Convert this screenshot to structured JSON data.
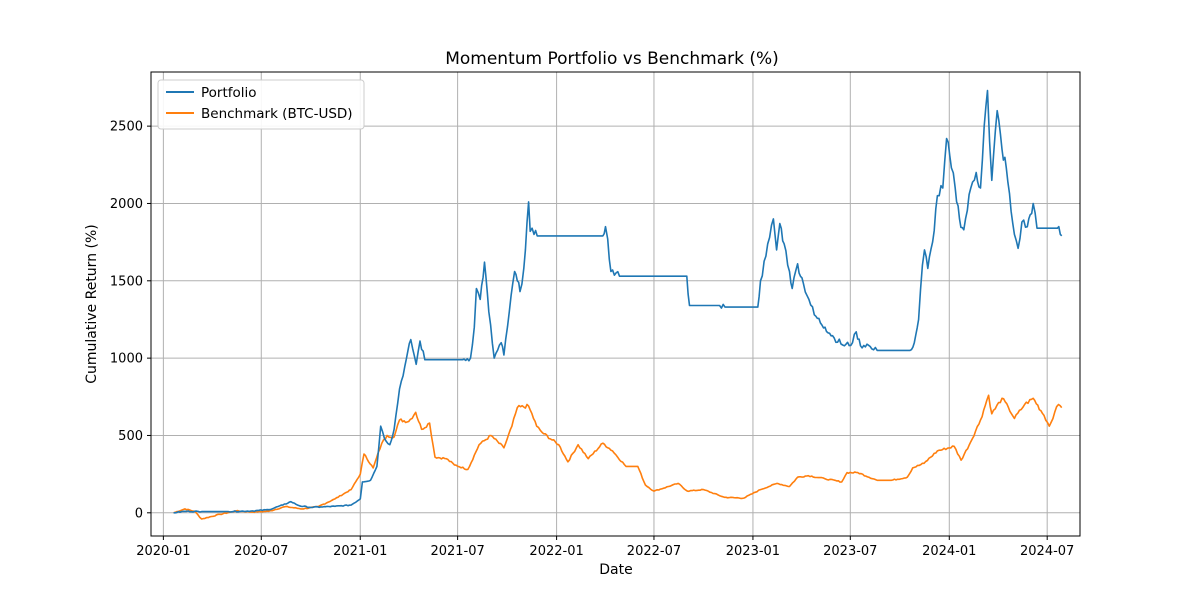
{
  "chart_data": {
    "type": "line",
    "title": "Momentum Portfolio vs Benchmark (%)",
    "xlabel": "Date",
    "ylabel": "Cumulative Return (%)",
    "xlim": [
      "2019-12-09",
      "2024-08-31"
    ],
    "ylim": [
      -150,
      2850
    ],
    "x_ticks": [
      "2020-01",
      "2020-07",
      "2021-01",
      "2021-07",
      "2022-01",
      "2022-07",
      "2023-01",
      "2023-07",
      "2024-01",
      "2024-07"
    ],
    "y_ticks": [
      0,
      500,
      1000,
      1500,
      2000,
      2500
    ],
    "grid": true,
    "legend_position": "top-left",
    "series": [
      {
        "name": "Portfolio",
        "color": "#1f77b4",
        "points": [
          [
            "2020-01-20",
            0
          ],
          [
            "2020-02-10",
            10
          ],
          [
            "2020-03-12",
            8
          ],
          [
            "2020-05-01",
            8
          ],
          [
            "2020-06-15",
            12
          ],
          [
            "2020-07-15",
            20
          ],
          [
            "2020-08-10",
            50
          ],
          [
            "2020-08-25",
            72
          ],
          [
            "2020-09-10",
            45
          ],
          [
            "2020-10-01",
            35
          ],
          [
            "2020-10-20",
            38
          ],
          [
            "2020-11-15",
            42
          ],
          [
            "2020-12-15",
            50
          ],
          [
            "2021-01-01",
            90
          ],
          [
            "2021-01-05",
            200
          ],
          [
            "2021-01-20",
            210
          ],
          [
            "2021-02-01",
            300
          ],
          [
            "2021-02-08",
            560
          ],
          [
            "2021-02-15",
            480
          ],
          [
            "2021-02-25",
            440
          ],
          [
            "2021-03-05",
            540
          ],
          [
            "2021-03-15",
            800
          ],
          [
            "2021-03-25",
            950
          ],
          [
            "2021-04-05",
            1120
          ],
          [
            "2021-04-15",
            960
          ],
          [
            "2021-04-22",
            1110
          ],
          [
            "2021-05-01",
            990
          ],
          [
            "2021-07-10",
            990
          ],
          [
            "2021-07-25",
            1000
          ],
          [
            "2021-08-01",
            1200
          ],
          [
            "2021-08-05",
            1450
          ],
          [
            "2021-08-12",
            1380
          ],
          [
            "2021-08-20",
            1620
          ],
          [
            "2021-08-28",
            1300
          ],
          [
            "2021-09-07",
            1000
          ],
          [
            "2021-09-20",
            1100
          ],
          [
            "2021-09-25",
            1020
          ],
          [
            "2021-10-05",
            1300
          ],
          [
            "2021-10-15",
            1560
          ],
          [
            "2021-10-20",
            1500
          ],
          [
            "2021-10-25",
            1430
          ],
          [
            "2021-11-01",
            1580
          ],
          [
            "2021-11-10",
            2010
          ],
          [
            "2021-11-13",
            1820
          ],
          [
            "2021-11-20",
            1800
          ],
          [
            "2021-11-26",
            1790
          ],
          [
            "2022-03-28",
            1790
          ],
          [
            "2022-04-02",
            1850
          ],
          [
            "2022-04-06",
            1770
          ],
          [
            "2022-04-12",
            1560
          ],
          [
            "2022-04-28",
            1530
          ],
          [
            "2022-08-31",
            1530
          ],
          [
            "2022-09-05",
            1340
          ],
          [
            "2022-10-31",
            1340
          ],
          [
            "2022-11-10",
            1330
          ],
          [
            "2023-01-10",
            1330
          ],
          [
            "2023-01-15",
            1500
          ],
          [
            "2023-01-25",
            1660
          ],
          [
            "2023-02-01",
            1780
          ],
          [
            "2023-02-08",
            1900
          ],
          [
            "2023-02-14",
            1700
          ],
          [
            "2023-02-20",
            1870
          ],
          [
            "2023-02-28",
            1740
          ],
          [
            "2023-03-10",
            1560
          ],
          [
            "2023-03-15",
            1450
          ],
          [
            "2023-03-25",
            1610
          ],
          [
            "2023-04-05",
            1480
          ],
          [
            "2023-04-15",
            1380
          ],
          [
            "2023-04-25",
            1280
          ],
          [
            "2023-05-15",
            1200
          ],
          [
            "2023-06-01",
            1130
          ],
          [
            "2023-06-20",
            1080
          ],
          [
            "2023-07-05",
            1100
          ],
          [
            "2023-07-12",
            1170
          ],
          [
            "2023-07-20",
            1080
          ],
          [
            "2023-08-01",
            1090
          ],
          [
            "2023-08-10",
            1060
          ],
          [
            "2023-08-20",
            1050
          ],
          [
            "2023-10-20",
            1050
          ],
          [
            "2023-10-28",
            1100
          ],
          [
            "2023-11-05",
            1250
          ],
          [
            "2023-11-12",
            1600
          ],
          [
            "2023-11-16",
            1700
          ],
          [
            "2023-11-22",
            1580
          ],
          [
            "2023-12-01",
            1750
          ],
          [
            "2023-12-10",
            2050
          ],
          [
            "2023-12-20",
            2100
          ],
          [
            "2023-12-27",
            2420
          ],
          [
            "2024-01-05",
            2230
          ],
          [
            "2024-01-12",
            2100
          ],
          [
            "2024-01-20",
            1900
          ],
          [
            "2024-01-28",
            1830
          ],
          [
            "2024-02-10",
            2100
          ],
          [
            "2024-02-20",
            2200
          ],
          [
            "2024-02-28",
            2100
          ],
          [
            "2024-03-06",
            2500
          ],
          [
            "2024-03-12",
            2730
          ],
          [
            "2024-03-16",
            2400
          ],
          [
            "2024-03-20",
            2150
          ],
          [
            "2024-03-30",
            2600
          ],
          [
            "2024-04-08",
            2350
          ],
          [
            "2024-04-16",
            2230
          ],
          [
            "2024-04-25",
            1950
          ],
          [
            "2024-05-01",
            1800
          ],
          [
            "2024-05-08",
            1710
          ],
          [
            "2024-05-15",
            1880
          ],
          [
            "2024-05-25",
            1850
          ],
          [
            "2024-06-05",
            2000
          ],
          [
            "2024-06-12",
            1840
          ],
          [
            "2024-07-20",
            1840
          ],
          [
            "2024-07-28",
            1790
          ]
        ]
      },
      {
        "name": "Benchmark (BTC-USD)",
        "color": "#ff7f0e",
        "points": [
          [
            "2020-01-20",
            0
          ],
          [
            "2020-02-10",
            25
          ],
          [
            "2020-02-28",
            10
          ],
          [
            "2020-03-12",
            -40
          ],
          [
            "2020-04-15",
            -10
          ],
          [
            "2020-05-15",
            12
          ],
          [
            "2020-06-15",
            5
          ],
          [
            "2020-07-15",
            10
          ],
          [
            "2020-08-15",
            40
          ],
          [
            "2020-09-15",
            25
          ],
          [
            "2020-10-15",
            40
          ],
          [
            "2020-11-15",
            90
          ],
          [
            "2020-12-15",
            150
          ],
          [
            "2021-01-01",
            250
          ],
          [
            "2021-01-08",
            380
          ],
          [
            "2021-01-25",
            290
          ],
          [
            "2021-02-10",
            450
          ],
          [
            "2021-02-20",
            500
          ],
          [
            "2021-03-05",
            490
          ],
          [
            "2021-03-15",
            600
          ],
          [
            "2021-04-01",
            590
          ],
          [
            "2021-04-14",
            650
          ],
          [
            "2021-04-25",
            540
          ],
          [
            "2021-05-10",
            580
          ],
          [
            "2021-05-20",
            360
          ],
          [
            "2021-06-10",
            350
          ],
          [
            "2021-06-25",
            310
          ],
          [
            "2021-07-20",
            280
          ],
          [
            "2021-08-10",
            440
          ],
          [
            "2021-09-01",
            500
          ],
          [
            "2021-09-25",
            420
          ],
          [
            "2021-10-10",
            560
          ],
          [
            "2021-10-20",
            680
          ],
          [
            "2021-11-10",
            690
          ],
          [
            "2021-11-25",
            560
          ],
          [
            "2021-12-05",
            520
          ],
          [
            "2022-01-05",
            440
          ],
          [
            "2022-01-22",
            330
          ],
          [
            "2022-02-10",
            440
          ],
          [
            "2022-03-01",
            350
          ],
          [
            "2022-03-28",
            450
          ],
          [
            "2022-04-15",
            400
          ],
          [
            "2022-05-10",
            300
          ],
          [
            "2022-06-01",
            300
          ],
          [
            "2022-06-15",
            180
          ],
          [
            "2022-07-01",
            140
          ],
          [
            "2022-08-15",
            190
          ],
          [
            "2022-09-01",
            140
          ],
          [
            "2022-10-01",
            150
          ],
          [
            "2022-11-09",
            100
          ],
          [
            "2022-12-15",
            95
          ],
          [
            "2023-01-15",
            150
          ],
          [
            "2023-02-15",
            190
          ],
          [
            "2023-03-10",
            170
          ],
          [
            "2023-03-25",
            230
          ],
          [
            "2023-04-14",
            240
          ],
          [
            "2023-05-15",
            220
          ],
          [
            "2023-06-15",
            200
          ],
          [
            "2023-06-25",
            260
          ],
          [
            "2023-07-15",
            260
          ],
          [
            "2023-08-20",
            210
          ],
          [
            "2023-09-15",
            210
          ],
          [
            "2023-10-15",
            230
          ],
          [
            "2023-10-25",
            290
          ],
          [
            "2023-11-15",
            320
          ],
          [
            "2023-12-10",
            400
          ],
          [
            "2024-01-10",
            430
          ],
          [
            "2024-01-23",
            340
          ],
          [
            "2024-02-10",
            460
          ],
          [
            "2024-02-28",
            600
          ],
          [
            "2024-03-14",
            760
          ],
          [
            "2024-03-20",
            640
          ],
          [
            "2024-04-08",
            740
          ],
          [
            "2024-04-20",
            680
          ],
          [
            "2024-05-01",
            610
          ],
          [
            "2024-05-20",
            700
          ],
          [
            "2024-06-05",
            740
          ],
          [
            "2024-06-25",
            630
          ],
          [
            "2024-07-05",
            560
          ],
          [
            "2024-07-15",
            650
          ],
          [
            "2024-07-22",
            700
          ],
          [
            "2024-07-28",
            680
          ]
        ]
      }
    ]
  }
}
